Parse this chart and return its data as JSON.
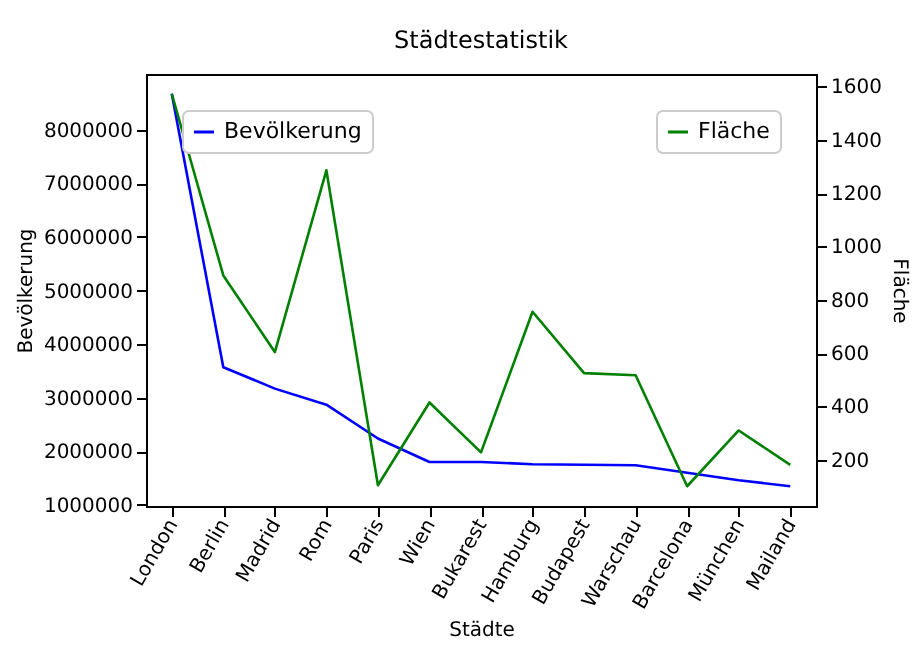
{
  "chart_data": {
    "type": "line",
    "title": "Städtestatistik",
    "xlabel": "Städte",
    "ylabel": "Bevölkerung",
    "y2label": "Fläche",
    "categories": [
      "London",
      "Berlin",
      "Madrid",
      "Rom",
      "Paris",
      "Wien",
      "Bukarest",
      "Hamburg",
      "Budapest",
      "Warschau",
      "Barcelona",
      "München",
      "Mailand"
    ],
    "series": [
      {
        "name": "Bevölkerung",
        "color": "#0000ff",
        "values": [
          8670000,
          3570000,
          3170000,
          2870000,
          2240000,
          1800000,
          1800000,
          1760000,
          1750000,
          1740000,
          1600000,
          1460000,
          1350000
        ]
      },
      {
        "name": "Fläche",
        "color": "#008000",
        "axis": "y2",
        "values": [
          1572,
          891,
          604,
          1285,
          105,
          415,
          228,
          755,
          525,
          517,
          101,
          310,
          181
        ]
      }
    ],
    "ylim": [
      980000,
      9040000
    ],
    "yticks": [
      1000000,
      2000000,
      3000000,
      4000000,
      5000000,
      6000000,
      7000000,
      8000000
    ],
    "y2lim": [
      27,
      1646
    ],
    "y2ticks": [
      200,
      400,
      600,
      800,
      1000,
      1200,
      1400,
      1600
    ],
    "legend": "top left",
    "grid": false
  }
}
